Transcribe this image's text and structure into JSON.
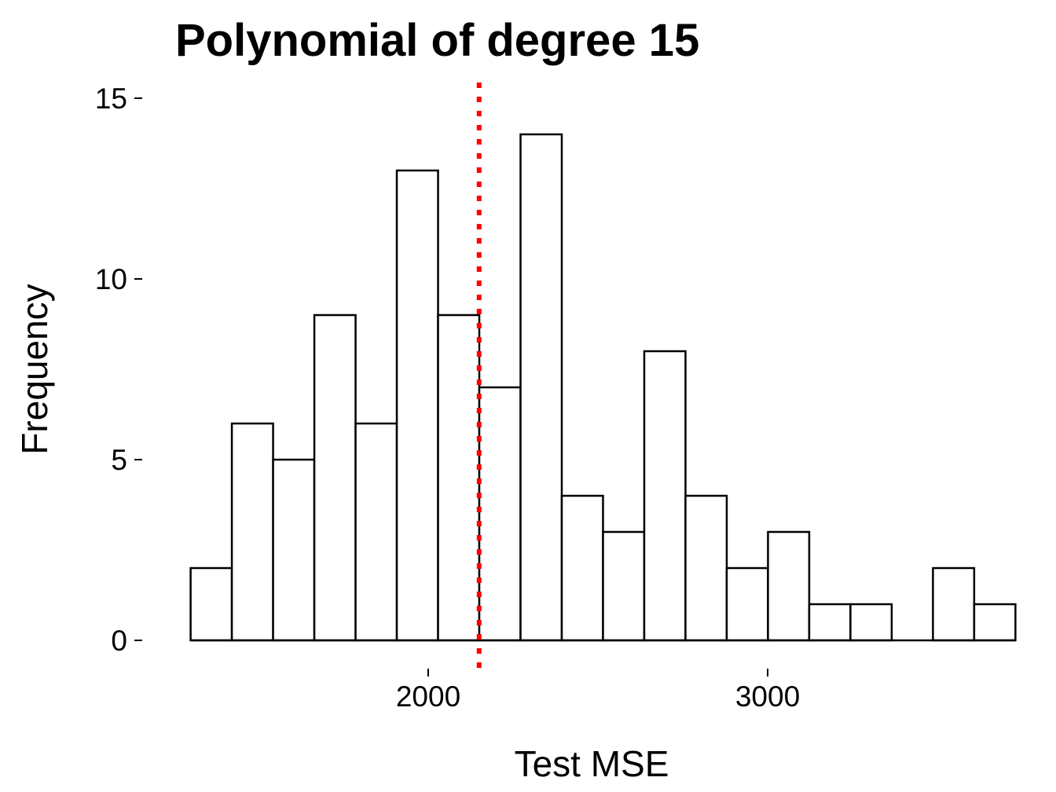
{
  "chart_data": {
    "type": "bar",
    "title": "Polynomial of degree 15",
    "xlabel": "Test MSE",
    "ylabel": "Frequency",
    "xlim": [
      1270,
      3700
    ],
    "ylim": [
      0,
      15
    ],
    "x_ticks": [
      2000,
      3000
    ],
    "y_ticks": [
      0,
      5,
      10,
      15
    ],
    "bin_start": 1300,
    "bin_width": 121.5,
    "bins": [
      {
        "x0": 1300.0,
        "x1": 1421.5,
        "count": 2
      },
      {
        "x0": 1421.5,
        "x1": 1543.0,
        "count": 6
      },
      {
        "x0": 1543.0,
        "x1": 1664.5,
        "count": 5
      },
      {
        "x0": 1664.5,
        "x1": 1786.0,
        "count": 9
      },
      {
        "x0": 1786.0,
        "x1": 1907.5,
        "count": 6
      },
      {
        "x0": 1907.5,
        "x1": 2029.0,
        "count": 13
      },
      {
        "x0": 2029.0,
        "x1": 2150.5,
        "count": 9
      },
      {
        "x0": 2150.5,
        "x1": 2272.0,
        "count": 7
      },
      {
        "x0": 2272.0,
        "x1": 2393.5,
        "count": 14
      },
      {
        "x0": 2393.5,
        "x1": 2515.0,
        "count": 4
      },
      {
        "x0": 2515.0,
        "x1": 2636.5,
        "count": 3
      },
      {
        "x0": 2636.5,
        "x1": 2758.0,
        "count": 8
      },
      {
        "x0": 2758.0,
        "x1": 2879.5,
        "count": 4
      },
      {
        "x0": 2879.5,
        "x1": 3001.0,
        "count": 2
      },
      {
        "x0": 3001.0,
        "x1": 3122.5,
        "count": 3
      },
      {
        "x0": 3122.5,
        "x1": 3244.0,
        "count": 1
      },
      {
        "x0": 3244.0,
        "x1": 3365.5,
        "count": 1
      },
      {
        "x0": 3365.5,
        "x1": 3487.0,
        "count": 0
      },
      {
        "x0": 3487.0,
        "x1": 3608.5,
        "count": 2
      },
      {
        "x0": 3608.5,
        "x1": 3730.0,
        "count": 1
      }
    ],
    "reference_line": {
      "x": 2150,
      "style": "dotted",
      "color": "#ff0000"
    },
    "grid": false,
    "legend": "none"
  }
}
